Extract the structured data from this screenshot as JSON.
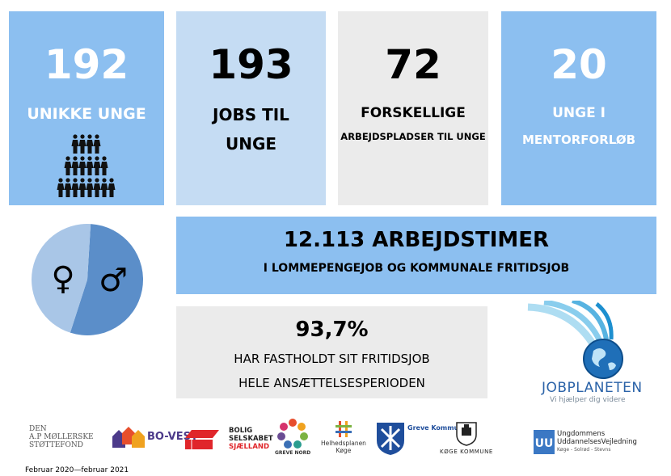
{
  "stats": [
    {
      "number": "192",
      "line1": "UNIKKE UNGE",
      "line2": ""
    },
    {
      "number": "193",
      "line1": "JOBS TIL",
      "line2": "UNGE"
    },
    {
      "number": "72",
      "line1": "FORSKELLIGE",
      "line2": "ARBEJDSPLADSER TIL UNGE"
    },
    {
      "number": "20",
      "line1": "UNGE I",
      "line2": "MENTORFORLØB"
    }
  ],
  "hours": {
    "title": "12.113 ARBEJDSTIMER",
    "subtitle": "I LOMMEPENGEJOB OG KOMMUNALE FRITIDSJOB"
  },
  "retention": {
    "percent": "93,7%",
    "line1": "HAR FASTHOLDT SIT FRITIDSJOB",
    "line2": "HELE ANSÆTTELSESPERIODEN"
  },
  "gender_pie": {
    "female_fraction": 0.46,
    "male_fraction": 0.54,
    "female_symbol": "♀",
    "male_symbol": "♂"
  },
  "jobplaneten": {
    "name": "JOBPLANETEN",
    "tagline": "Vi hjælper dig videre"
  },
  "logos": {
    "apm": [
      "DEN",
      "A.P MØLLERSKE",
      "STØTTEFOND"
    ],
    "bovest": "BO-VEST",
    "bolig": [
      "BOLIG",
      "SELSKABET",
      "SJÆLLAND"
    ],
    "grevenord": "GREVE NORD",
    "helhed": [
      "Helhedsplanen",
      "Køge"
    ],
    "greve": "Greve Kommune",
    "koge": "KØGE KOMMUNE",
    "uu": [
      "Ungdommens",
      "UddannelsesVejledning",
      "Køge - Solrød - Stevns"
    ]
  },
  "footer": "Februar 2020—februar 2021",
  "colors": {
    "mid_blue": "#8cbff0",
    "light_blue": "#c5dcf3",
    "grey": "#ebebeb",
    "pie_male": "#5b8ec9",
    "pie_female": "#a9c6e7"
  }
}
